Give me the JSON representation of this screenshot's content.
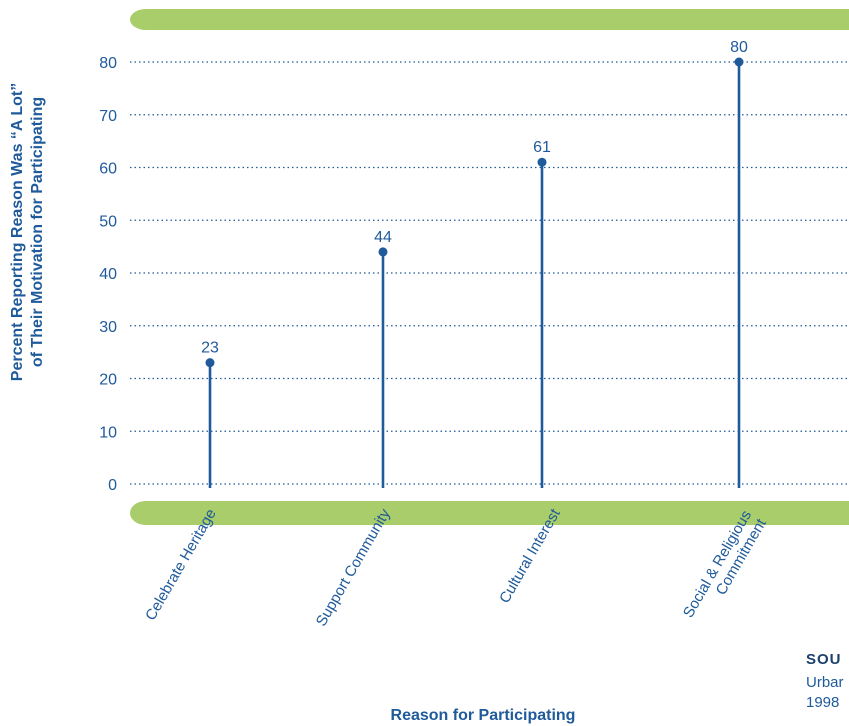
{
  "chart_data": {
    "type": "bar",
    "categories": [
      "Celebrate Heritage",
      "Support Community",
      "Cultural Interest",
      "Social & Religious Commitment"
    ],
    "category_lines": [
      [
        "Celebrate Heritage"
      ],
      [
        "Support Community"
      ],
      [
        "Cultural Interest"
      ],
      [
        "Social & Religious",
        "Commitment"
      ]
    ],
    "values": [
      23,
      44,
      61,
      80
    ],
    "value_labels": [
      "23",
      "44",
      "61",
      "80"
    ],
    "xlabel": "Reason for Participating",
    "ylabel_lines": [
      "Percent Reporting Reason Was “A Lot”",
      "of Their Motivation for Participating"
    ],
    "ylim": [
      0,
      80
    ],
    "yticks": [
      "0",
      "10",
      "20",
      "30",
      "40",
      "50",
      "60",
      "70",
      "80"
    ],
    "grid": true,
    "colors": {
      "stem": "#1f5a9a",
      "band": "#a8cd6a",
      "grid": "#1f5a9a"
    }
  },
  "source": {
    "heading": "SOU",
    "lines": [
      "Urbar",
      "1998"
    ]
  }
}
